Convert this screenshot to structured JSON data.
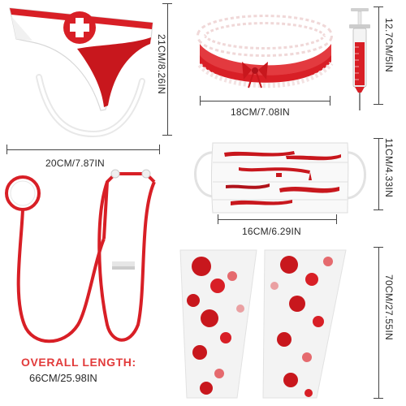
{
  "products": {
    "headband": {
      "width_label": "20CM/7.87IN",
      "height_label": "21CM/8.26IN"
    },
    "garter": {
      "width_label": "18CM/7.08IN"
    },
    "syringe": {
      "height_label": "12.7CM/5IN"
    },
    "mask": {
      "width_label": "16CM/6.29IN",
      "height_label": "11CM/4.33IN"
    },
    "stethoscope": {
      "overall_label": "OVERALL LENGTH:",
      "overall_value": "66CM/25.98IN"
    },
    "sleeves": {
      "height_label": "70CM/27.55IN"
    }
  },
  "colors": {
    "accent": "#e23b3b",
    "blood": "#c8171d",
    "line": "#444444"
  }
}
